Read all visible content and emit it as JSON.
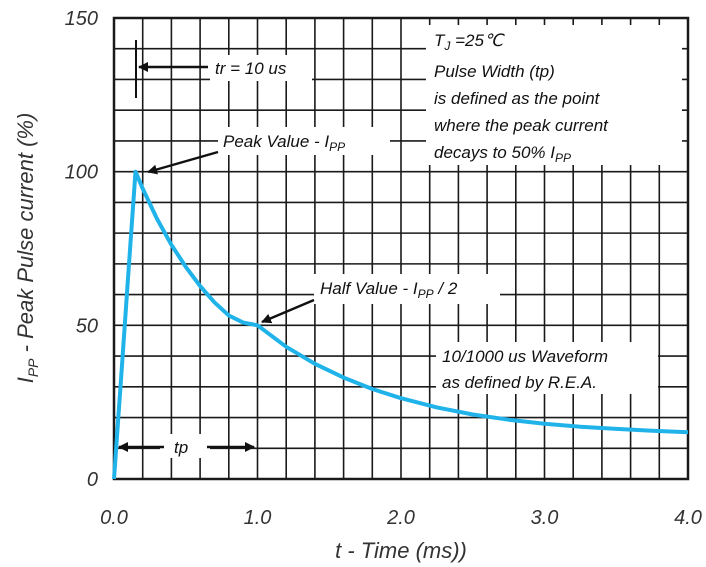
{
  "chart_data": {
    "type": "line",
    "xlabel": "t - Time (ms))",
    "ylabel_main": "I",
    "ylabel_sub": "PP",
    "ylabel_rest": " - Peak Pulse current (%)",
    "xlim": [
      0,
      4.0
    ],
    "ylim": [
      0,
      150
    ],
    "x_ticks": [
      "0.0",
      "1.0",
      "2.0",
      "3.0",
      "4.0"
    ],
    "y_ticks": [
      "0",
      "50",
      "100",
      "150"
    ],
    "grid": true,
    "series": [
      {
        "x": [
          0,
          0.025,
          0.05,
          0.1,
          0.15,
          0.2,
          0.3,
          0.4,
          0.5,
          0.6,
          0.7,
          0.8,
          0.9,
          1.0,
          1.2,
          1.4,
          1.6,
          1.8,
          2.0,
          2.25,
          2.5,
          2.75,
          3.0,
          3.25,
          3.5,
          3.75,
          4.0
        ],
        "y": [
          0,
          16.7,
          33.3,
          66.7,
          100,
          94.5,
          84.6,
          76.2,
          69.0,
          62.8,
          57.5,
          53.2,
          50.9,
          50.0,
          43.0,
          37.5,
          33.0,
          29.3,
          26.3,
          23.3,
          21.0,
          19.3,
          18.0,
          17.0,
          16.3,
          15.7,
          15.2
        ],
        "color": "#20b3ea"
      }
    ],
    "annotations": {
      "tj": "T",
      "tj_sub": "J",
      "tj_rest": " =25℃",
      "pulse_line1": "Pulse Width (tp)",
      "pulse_line2": "is defined as the point",
      "pulse_line3": "where the peak current",
      "pulse_line4": "decays to 50% I",
      "pulse_line4_sub": "PP",
      "tr": "tr = 10 us",
      "peak": "Peak Value - I",
      "peak_sub": "PP",
      "half": "Half Value - I",
      "half_sub": "PP",
      "half_rest": " / 2",
      "waveform_line1": "10/1000 us Waveform",
      "waveform_line2": "as defined by R.E.A.",
      "tp": "tp"
    }
  }
}
